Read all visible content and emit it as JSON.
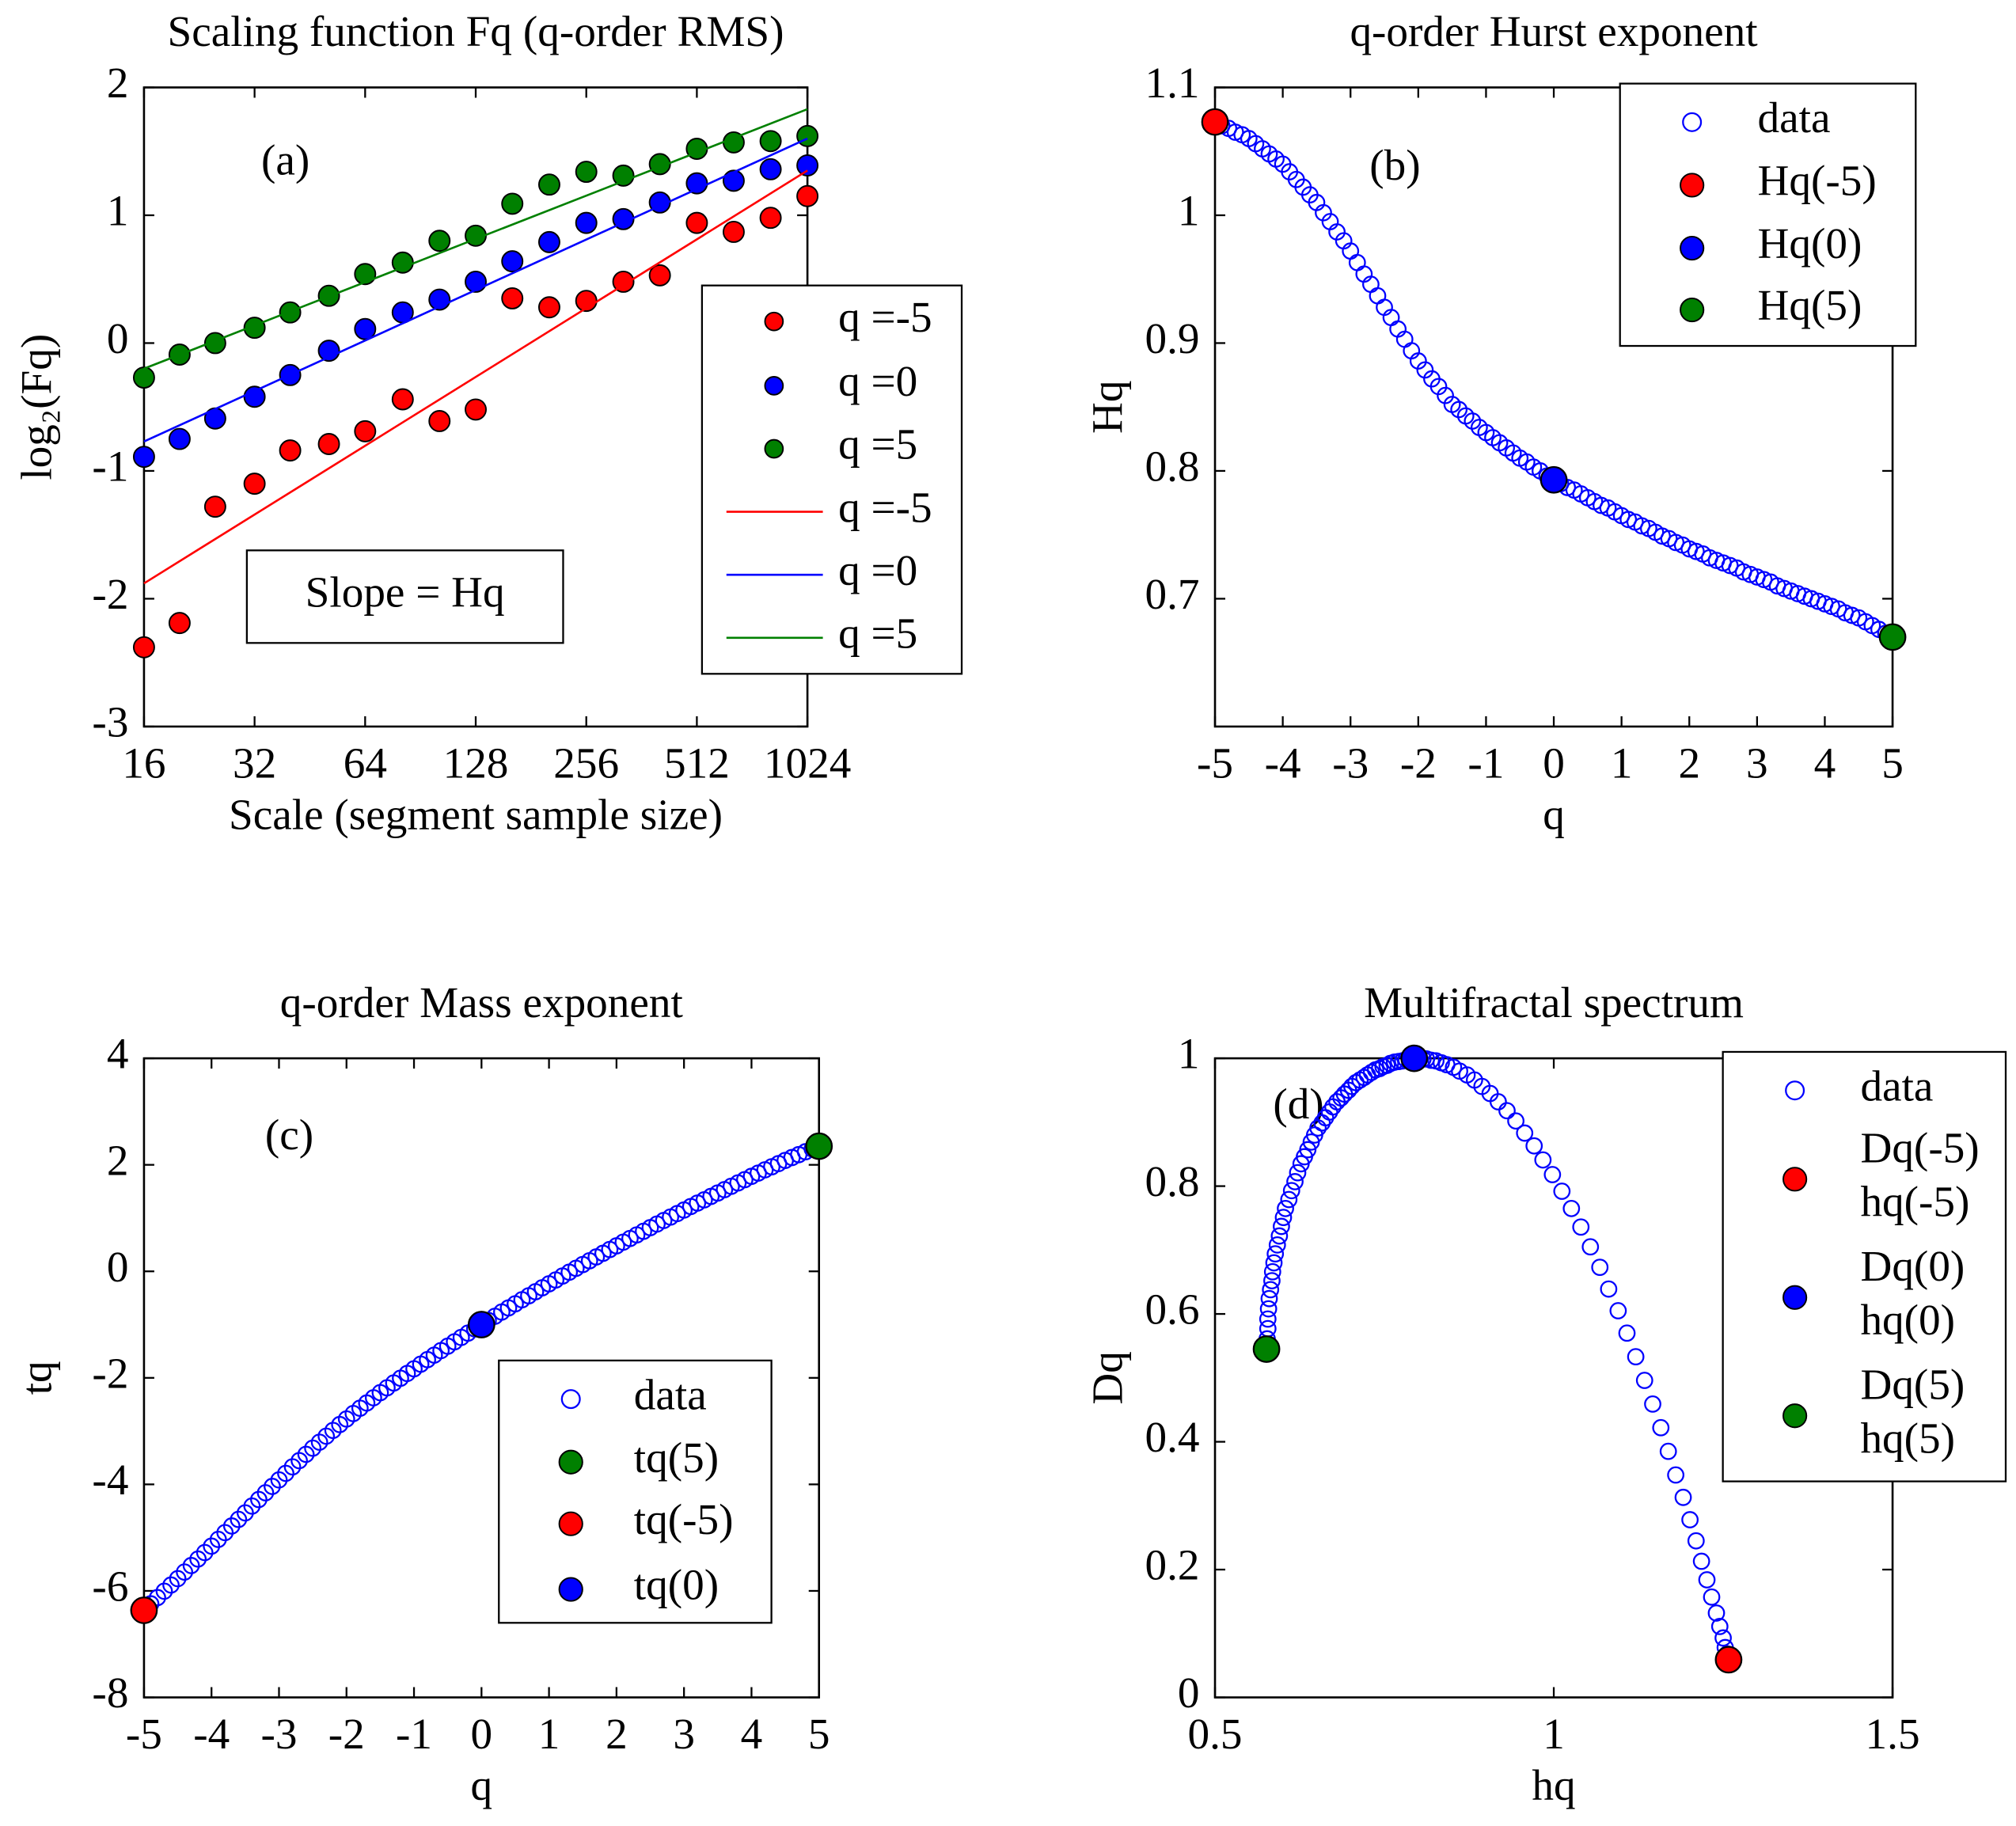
{
  "chart_data": [
    {
      "type": "scatter",
      "title": "Scaling function Fq (q-order RMS)",
      "x_label": "Scale (segment sample size)",
      "y_label": "log₂(Fq)",
      "panel_label": "(a)",
      "annotation": "Slope = Hq",
      "xscale": "log",
      "xlim": [
        16,
        1024
      ],
      "xticks": [
        16,
        32,
        64,
        128,
        256,
        512,
        1024
      ],
      "ylim": [
        -3,
        2
      ],
      "yticks": [
        -3,
        -2,
        -1,
        0,
        1,
        2
      ],
      "x": [
        16,
        20,
        25,
        32,
        40,
        51,
        64,
        81,
        102,
        128,
        161,
        203,
        256,
        323,
        406,
        512,
        645,
        813,
        1024
      ],
      "series": [
        {
          "name": "q =-5",
          "color": "#ff0000",
          "style": "filled",
          "values": [
            -2.38,
            -2.19,
            -1.28,
            -1.1,
            -0.84,
            -0.79,
            -0.69,
            -0.44,
            -0.61,
            -0.52,
            0.35,
            0.28,
            0.33,
            0.48,
            0.53,
            0.94,
            0.87,
            0.98,
            1.15
          ]
        },
        {
          "name": "q =0",
          "color": "#0000ff",
          "style": "filled",
          "values": [
            -0.89,
            -0.75,
            -0.59,
            -0.42,
            -0.25,
            -0.06,
            0.11,
            0.24,
            0.34,
            0.48,
            0.64,
            0.79,
            0.94,
            0.97,
            1.1,
            1.25,
            1.27,
            1.36,
            1.39
          ]
        },
        {
          "name": "q =5",
          "color": "#008000",
          "style": "filled",
          "values": [
            -0.27,
            -0.09,
            0.0,
            0.12,
            0.24,
            0.37,
            0.54,
            0.63,
            0.8,
            0.84,
            1.09,
            1.24,
            1.34,
            1.31,
            1.4,
            1.52,
            1.57,
            1.58,
            1.62
          ]
        },
        {
          "name": "q =-5",
          "color": "#ff0000",
          "style": "line",
          "x": [
            16,
            1024
          ],
          "values": [
            -1.88,
            1.35
          ]
        },
        {
          "name": "q =0",
          "color": "#0000ff",
          "style": "line",
          "x": [
            16,
            1024
          ],
          "values": [
            -0.77,
            1.6
          ]
        },
        {
          "name": "q =5",
          "color": "#008000",
          "style": "line",
          "x": [
            16,
            1024
          ],
          "values": [
            -0.2,
            1.83
          ]
        }
      ]
    },
    {
      "type": "scatter",
      "title": "q-order Hurst exponent",
      "x_label": "q",
      "y_label": "Hq",
      "panel_label": "(b)",
      "xlim": [
        -5,
        5
      ],
      "xticks": [
        -5,
        -4,
        -3,
        -2,
        -1,
        0,
        1,
        2,
        3,
        4,
        5
      ],
      "ylim": [
        0.6,
        1.1
      ],
      "yticks": [
        0.7,
        0.8,
        0.9,
        1,
        1.1
      ],
      "x": [
        -5,
        -4.9,
        -4.8,
        -4.7,
        -4.6,
        -4.5,
        -4.4,
        -4.3,
        -4.2,
        -4.1,
        -4,
        -3.9,
        -3.8,
        -3.7,
        -3.6,
        -3.5,
        -3.4,
        -3.3,
        -3.2,
        -3.1,
        -3,
        -2.9,
        -2.8,
        -2.7,
        -2.6,
        -2.5,
        -2.4,
        -2.3,
        -2.2,
        -2.1,
        -2,
        -1.9,
        -1.8,
        -1.7,
        -1.6,
        -1.5,
        -1.4,
        -1.3,
        -1.2,
        -1.1,
        -1,
        -0.9,
        -0.8,
        -0.7,
        -0.6,
        -0.5,
        -0.4,
        -0.3,
        -0.2,
        -0.1,
        0,
        0.1,
        0.2,
        0.3,
        0.4,
        0.5,
        0.6,
        0.7,
        0.8,
        0.9,
        1,
        1.1,
        1.2,
        1.3,
        1.4,
        1.5,
        1.6,
        1.7,
        1.8,
        1.9,
        2,
        2.1,
        2.2,
        2.3,
        2.4,
        2.5,
        2.6,
        2.7,
        2.8,
        2.9,
        3,
        3.1,
        3.2,
        3.3,
        3.4,
        3.5,
        3.6,
        3.7,
        3.8,
        3.9,
        4,
        4.1,
        4.2,
        4.3,
        4.4,
        4.5,
        4.6,
        4.7,
        4.8,
        4.9,
        5
      ],
      "series": [
        {
          "name": "data",
          "color": "#0000ff",
          "style": "open",
          "values": [
            1.073,
            1.07,
            1.068,
            1.065,
            1.063,
            1.06,
            1.056,
            1.052,
            1.048,
            1.044,
            1.04,
            1.034,
            1.028,
            1.022,
            1.016,
            1.01,
            1.002,
            0.995,
            0.987,
            0.98,
            0.972,
            0.963,
            0.954,
            0.946,
            0.937,
            0.928,
            0.92,
            0.911,
            0.903,
            0.894,
            0.886,
            0.879,
            0.872,
            0.866,
            0.859,
            0.852,
            0.848,
            0.843,
            0.839,
            0.834,
            0.83,
            0.826,
            0.822,
            0.818,
            0.814,
            0.81,
            0.807,
            0.803,
            0.8,
            0.796,
            0.793,
            0.79,
            0.787,
            0.785,
            0.782,
            0.779,
            0.776,
            0.773,
            0.771,
            0.768,
            0.765,
            0.762,
            0.76,
            0.757,
            0.755,
            0.752,
            0.749,
            0.747,
            0.744,
            0.742,
            0.739,
            0.737,
            0.735,
            0.732,
            0.73,
            0.728,
            0.726,
            0.724,
            0.721,
            0.719,
            0.717,
            0.715,
            0.713,
            0.71,
            0.708,
            0.706,
            0.704,
            0.702,
            0.7,
            0.698,
            0.696,
            0.694,
            0.692,
            0.689,
            0.687,
            0.685,
            0.682,
            0.679,
            0.676,
            0.673,
            0.67
          ]
        },
        {
          "name": "Hq(-5)",
          "color": "#ff0000",
          "style": "big",
          "x": [
            -5
          ],
          "values": [
            1.073
          ]
        },
        {
          "name": "Hq(0)",
          "color": "#0000ff",
          "style": "big",
          "x": [
            0
          ],
          "values": [
            0.793
          ]
        },
        {
          "name": "Hq(5)",
          "color": "#008000",
          "style": "big",
          "x": [
            5
          ],
          "values": [
            0.67
          ]
        }
      ]
    },
    {
      "type": "scatter",
      "title": "q-order Mass exponent",
      "x_label": "q",
      "y_label": "tq",
      "panel_label": "(c)",
      "xlim": [
        -5,
        5
      ],
      "xticks": [
        -5,
        -4,
        -3,
        -2,
        -1,
        0,
        1,
        2,
        3,
        4,
        5
      ],
      "ylim": [
        -8,
        4
      ],
      "yticks": [
        -8,
        -6,
        -4,
        -2,
        0,
        2,
        4
      ],
      "x": [
        -5,
        -4.9,
        -4.8,
        -4.7,
        -4.6,
        -4.5,
        -4.4,
        -4.3,
        -4.2,
        -4.1,
        -4,
        -3.9,
        -3.8,
        -3.7,
        -3.6,
        -3.5,
        -3.4,
        -3.3,
        -3.2,
        -3.1,
        -3,
        -2.9,
        -2.8,
        -2.7,
        -2.6,
        -2.5,
        -2.4,
        -2.3,
        -2.2,
        -2.1,
        -2,
        -1.9,
        -1.8,
        -1.7,
        -1.6,
        -1.5,
        -1.4,
        -1.3,
        -1.2,
        -1.1,
        -1,
        -0.9,
        -0.8,
        -0.7,
        -0.6,
        -0.5,
        -0.4,
        -0.3,
        -0.2,
        -0.1,
        0,
        0.1,
        0.2,
        0.3,
        0.4,
        0.5,
        0.6,
        0.7,
        0.8,
        0.9,
        1,
        1.1,
        1.2,
        1.3,
        1.4,
        1.5,
        1.6,
        1.7,
        1.8,
        1.9,
        2,
        2.1,
        2.2,
        2.3,
        2.4,
        2.5,
        2.6,
        2.7,
        2.8,
        2.9,
        3,
        3.1,
        3.2,
        3.3,
        3.4,
        3.5,
        3.6,
        3.7,
        3.8,
        3.9,
        4,
        4.1,
        4.2,
        4.3,
        4.4,
        4.5,
        4.6,
        4.7,
        4.8,
        4.9,
        5
      ],
      "series": [
        {
          "name": "data",
          "color": "#0000ff",
          "style": "open",
          "values": [
            -6.365,
            -6.243,
            -6.126,
            -6.006,
            -5.89,
            -5.77,
            -5.646,
            -5.524,
            -5.402,
            -5.28,
            -5.16,
            -5.033,
            -4.906,
            -4.781,
            -4.658,
            -4.535,
            -4.407,
            -4.284,
            -4.158,
            -4.038,
            -3.916,
            -3.793,
            -3.671,
            -3.554,
            -3.436,
            -3.32,
            -3.208,
            -3.095,
            -2.987,
            -2.877,
            -2.772,
            -2.67,
            -2.57,
            -2.472,
            -2.374,
            -2.278,
            -2.187,
            -2.096,
            -2.007,
            -1.917,
            -1.83,
            -1.743,
            -1.658,
            -1.573,
            -1.488,
            -1.405,
            -1.323,
            -1.241,
            -1.16,
            -1.08,
            -1,
            -0.921,
            -0.843,
            -0.764,
            -0.687,
            -0.61,
            -0.534,
            -0.459,
            -0.383,
            -0.309,
            -0.235,
            -0.162,
            -0.088,
            -0.016,
            0.057,
            0.128,
            0.198,
            0.27,
            0.339,
            0.41,
            0.478,
            0.548,
            0.617,
            0.684,
            0.752,
            0.82,
            0.888,
            0.955,
            1.019,
            1.085,
            1.151,
            1.217,
            1.282,
            1.343,
            1.407,
            1.471,
            1.534,
            1.597,
            1.66,
            1.722,
            1.784,
            1.845,
            1.906,
            1.963,
            2.023,
            2.083,
            2.137,
            2.191,
            2.245,
            2.298,
            2.35
          ]
        },
        {
          "name": "tq(5)",
          "color": "#008000",
          "style": "big",
          "x": [
            5
          ],
          "values": [
            2.35
          ]
        },
        {
          "name": "tq(-5)",
          "color": "#ff0000",
          "style": "big",
          "x": [
            -5
          ],
          "values": [
            -6.365
          ]
        },
        {
          "name": "tq(0)",
          "color": "#0000ff",
          "style": "big",
          "x": [
            0
          ],
          "values": [
            -1
          ]
        }
      ]
    },
    {
      "type": "scatter",
      "title": "Multifractal spectrum",
      "x_label": "hq",
      "y_label": "Dq",
      "panel_label": "(d)",
      "xlim": [
        0.5,
        1.5
      ],
      "xticks": [
        0.5,
        1,
        1.5
      ],
      "ylim": [
        0,
        1
      ],
      "yticks": [
        0,
        0.2,
        0.4,
        0.6,
        0.8,
        1
      ],
      "series": [
        {
          "name": "data",
          "color": "#0000ff",
          "style": "open",
          "x": [
            1.258,
            1.257,
            1.256,
            1.253,
            1.25,
            1.245,
            1.24,
            1.233,
            1.226,
            1.218,
            1.21,
            1.201,
            1.191,
            1.18,
            1.169,
            1.158,
            1.146,
            1.134,
            1.121,
            1.108,
            1.095,
            1.081,
            1.068,
            1.054,
            1.04,
            1.026,
            1.012,
            0.998,
            0.984,
            0.971,
            0.957,
            0.944,
            0.931,
            0.918,
            0.906,
            0.894,
            0.883,
            0.872,
            0.861,
            0.852,
            0.842,
            0.834,
            0.826,
            0.819,
            0.812,
            0.807,
            0.802,
            0.799,
            0.796,
            0.795,
            0.794,
            0.788,
            0.782,
            0.777,
            0.771,
            0.765,
            0.759,
            0.754,
            0.748,
            0.743,
            0.737,
            0.731,
            0.725,
            0.72,
            0.714,
            0.708,
            0.702,
            0.697,
            0.691,
            0.686,
            0.68,
            0.674,
            0.669,
            0.663,
            0.658,
            0.652,
            0.647,
            0.642,
            0.637,
            0.632,
            0.627,
            0.622,
            0.618,
            0.613,
            0.609,
            0.604,
            0.601,
            0.598,
            0.595,
            0.592,
            0.589,
            0.587,
            0.585,
            0.584,
            0.582,
            0.58,
            0.579,
            0.578,
            0.578,
            0.577,
            0.576
          ],
          "values": [
            0.059,
            0.061,
            0.068,
            0.078,
            0.093,
            0.111,
            0.132,
            0.157,
            0.184,
            0.213,
            0.245,
            0.278,
            0.313,
            0.348,
            0.385,
            0.422,
            0.459,
            0.496,
            0.533,
            0.57,
            0.605,
            0.639,
            0.673,
            0.705,
            0.736,
            0.765,
            0.792,
            0.818,
            0.841,
            0.863,
            0.883,
            0.902,
            0.918,
            0.932,
            0.945,
            0.956,
            0.966,
            0.974,
            0.98,
            0.986,
            0.99,
            0.993,
            0.996,
            0.997,
            0.999,
            0.999,
            1.0,
            1.0,
            1.0,
            1.0,
            1.0,
            0.999,
            0.998,
            0.996,
            0.995,
            0.994,
            0.992,
            0.989,
            0.987,
            0.984,
            0.982,
            0.978,
            0.974,
            0.97,
            0.966,
            0.962,
            0.956,
            0.95,
            0.944,
            0.938,
            0.932,
            0.924,
            0.916,
            0.907,
            0.899,
            0.891,
            0.88,
            0.869,
            0.857,
            0.846,
            0.835,
            0.821,
            0.807,
            0.793,
            0.779,
            0.765,
            0.751,
            0.737,
            0.722,
            0.708,
            0.694,
            0.68,
            0.666,
            0.652,
            0.638,
            0.624,
            0.608,
            0.592,
            0.577,
            0.561,
            0.545
          ]
        },
        {
          "name": [
            "Dq(-5)",
            "hq(-5)"
          ],
          "color": "#ff0000",
          "style": "big",
          "x": [
            1.258
          ],
          "values": [
            0.059
          ]
        },
        {
          "name": [
            "Dq(0)",
            "hq(0)"
          ],
          "color": "#0000ff",
          "style": "big",
          "x": [
            0.794
          ],
          "values": [
            1.0
          ]
        },
        {
          "name": [
            "Dq(5)",
            "hq(5)"
          ],
          "color": "#008000",
          "style": "big",
          "x": [
            0.576
          ],
          "values": [
            0.545
          ]
        }
      ]
    }
  ]
}
